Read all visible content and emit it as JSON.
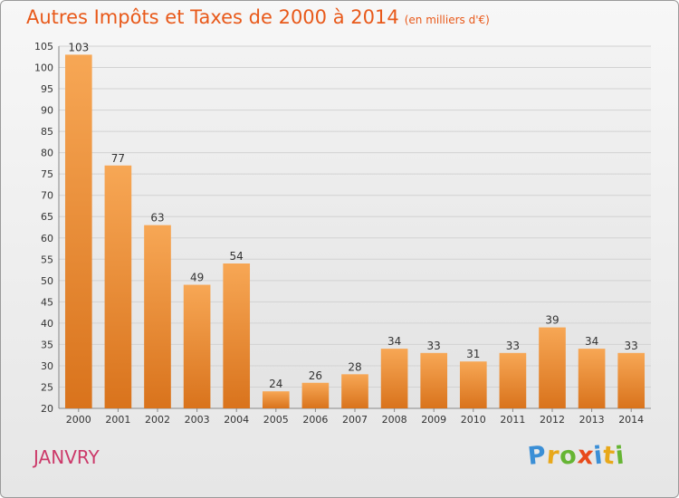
{
  "header": {
    "title": "Autres Impôts et Taxes de 2000 à 2014",
    "unit": "(en milliers d'€)"
  },
  "commune": "JANVRY",
  "logo": {
    "text": "Proxiti",
    "letters": [
      {
        "ch": "P",
        "color": "#3b8fd6"
      },
      {
        "ch": "r",
        "color": "#e8a81a"
      },
      {
        "ch": "o",
        "color": "#66b534"
      },
      {
        "ch": "x",
        "color": "#e84a1a"
      },
      {
        "ch": "i",
        "color": "#3b8fd6"
      },
      {
        "ch": "t",
        "color": "#e8a81a"
      },
      {
        "ch": "i",
        "color": "#66b534"
      }
    ]
  },
  "colors": {
    "bar_top": "#f7a755",
    "bar_bottom": "#d9731c",
    "title": "#e8591a",
    "commune": "#cc3a6a",
    "grid": "#d2d2d2"
  },
  "chart_data": {
    "type": "bar",
    "title": "Autres Impôts et Taxes de 2000 à 2014",
    "subtitle": "(en milliers d'€)",
    "xlabel": "",
    "ylabel": "",
    "categories": [
      "2000",
      "2001",
      "2002",
      "2003",
      "2004",
      "2005",
      "2006",
      "2007",
      "2008",
      "2009",
      "2010",
      "2011",
      "2012",
      "2013",
      "2014"
    ],
    "values": [
      103,
      77,
      63,
      49,
      54,
      24,
      26,
      28,
      34,
      33,
      31,
      33,
      39,
      34,
      33
    ],
    "ylim": [
      20,
      105
    ],
    "yticks": [
      20,
      25,
      30,
      35,
      40,
      45,
      50,
      55,
      60,
      65,
      70,
      75,
      80,
      85,
      90,
      95,
      100,
      105
    ],
    "grid": true,
    "data_labels": true
  }
}
